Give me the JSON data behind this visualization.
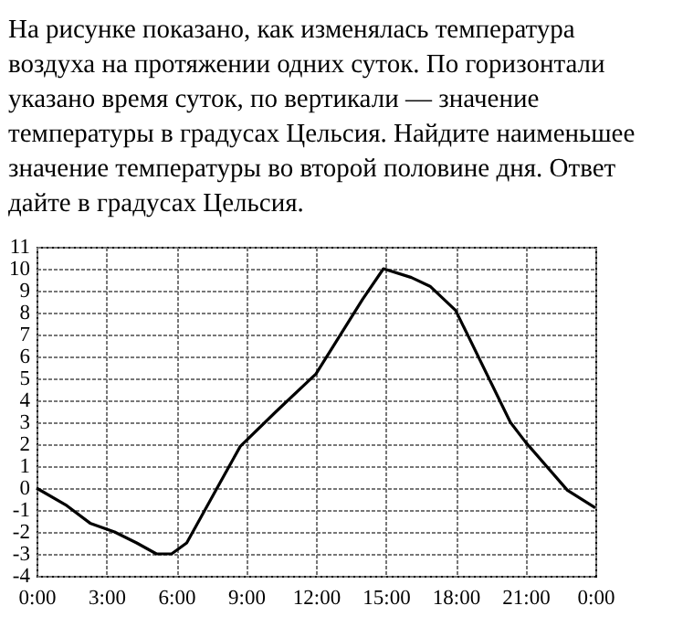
{
  "chart_data": {
    "type": "line",
    "title": "На рисунке показано, как изменялась температура воздуха на протяжении одних суток. По горизонтали указано время суток, по вертикали — значение температуры в градусах Цельсия. Найдите наименьшее значение температуры во второй половине дня. Ответ дайте в градусах Цельсия.",
    "x": [
      0,
      1.3,
      2.3,
      3.35,
      4.3,
      5.15,
      5.8,
      6.45,
      7.7,
      8.75,
      10.3,
      12,
      13,
      14,
      14.9,
      16.1,
      16.9,
      18,
      20.35,
      21,
      22.8,
      24
    ],
    "series": [
      {
        "color": "#000000",
        "values": [
          0,
          -0.8,
          -1.6,
          -2,
          -2.5,
          -3,
          -3,
          -2.5,
          -0.1,
          1.9,
          3.5,
          5.2,
          6.9,
          8.6,
          10,
          9.6,
          9.2,
          8.1,
          3,
          2.1,
          -0.1,
          -0.9
        ]
      }
    ],
    "xlim": [
      0,
      24
    ],
    "xticks": [
      {
        "value": 0,
        "label": "0:00"
      },
      {
        "value": 3,
        "label": "3:00"
      },
      {
        "value": 6,
        "label": "6:00"
      },
      {
        "value": 9,
        "label": "9:00"
      },
      {
        "value": 12,
        "label": "12:00"
      },
      {
        "value": 15,
        "label": "15:00"
      },
      {
        "value": 18,
        "label": "18:00"
      },
      {
        "value": 21,
        "label": "21:00"
      },
      {
        "value": 24,
        "label": "0:00"
      }
    ],
    "ylim": [
      -4,
      11
    ],
    "yticks": [
      -4,
      -3,
      -2,
      -1,
      0,
      1,
      2,
      3,
      4,
      5,
      6,
      7,
      8,
      9,
      10,
      11
    ],
    "grid": true,
    "marker": "none",
    "line_style": "solid"
  }
}
